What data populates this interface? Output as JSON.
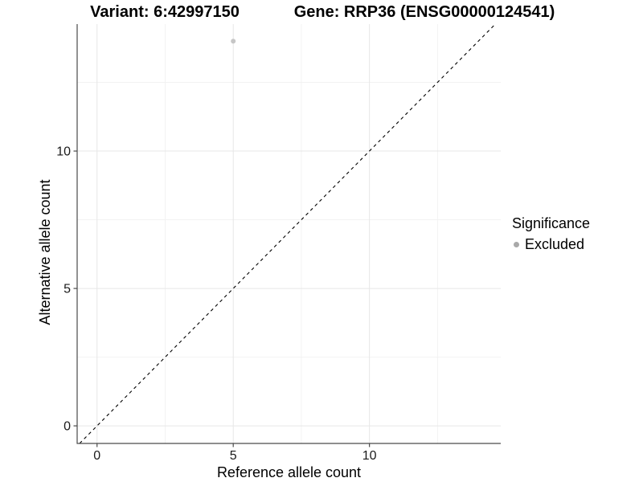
{
  "titles": {
    "variant": "Variant: 6:42997150",
    "gene": "Gene: RRP36 (ENSG00000124541)"
  },
  "chart_data": {
    "type": "scatter",
    "title_left": "Variant: 6:42997150",
    "title_right": "Gene: RRP36 (ENSG00000124541)",
    "xlabel": "Reference allele count",
    "ylabel": "Alternative allele count",
    "xlim": [
      -0.73,
      14.82
    ],
    "ylim": [
      -0.64,
      14.62
    ],
    "x_ticks": [
      0,
      5,
      10
    ],
    "y_ticks": [
      0,
      5,
      10
    ],
    "x_minor_gridlines": [
      2.5,
      7.5,
      12.5
    ],
    "y_minor_gridlines": [
      2.5,
      7.5,
      12.5
    ],
    "grid": "major and minor, faint grey on white",
    "reference_line": {
      "type": "identity y=x",
      "style": "dashed",
      "color": "#000000"
    },
    "series": [
      {
        "name": "Excluded",
        "point_color": "#c6c6c6",
        "points": [
          {
            "x": 5,
            "y": 14
          }
        ]
      }
    ],
    "legend": {
      "title": "Significance",
      "position": "right",
      "entries": [
        {
          "label": "Excluded",
          "color": "#a9a9a9",
          "marker": "circle"
        }
      ]
    }
  },
  "colors": {
    "background": "#ffffff",
    "axis_line": "#4a4a4a",
    "tick_label": "#1a1a1a",
    "grid_major": "#e7e7e7",
    "grid_minor": "#f2f2f2",
    "identity_line": "#000000"
  }
}
